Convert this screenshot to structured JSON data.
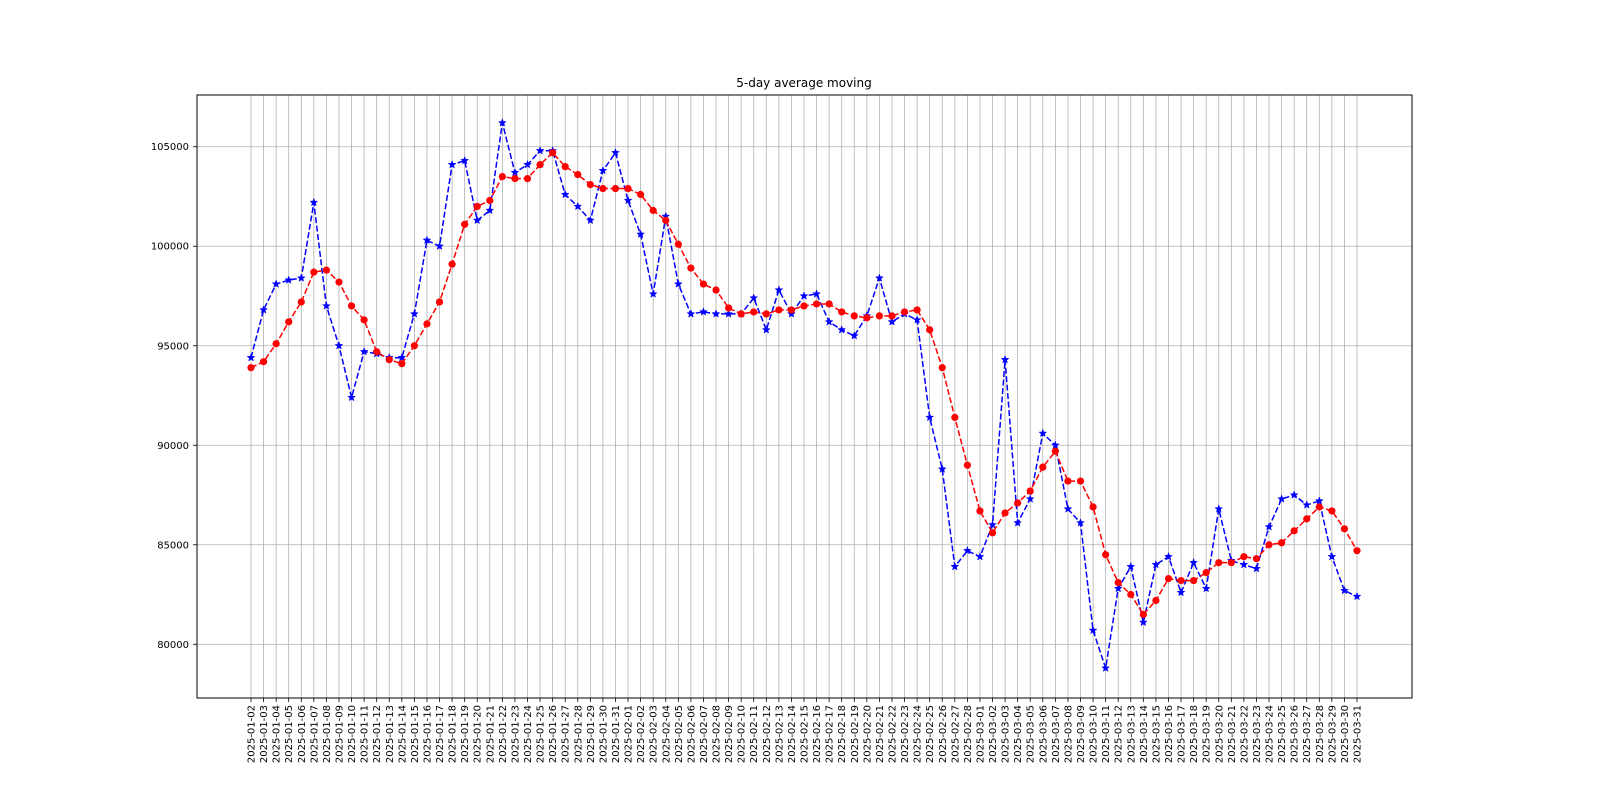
{
  "chart_data": {
    "type": "line",
    "title": "5-day average moving",
    "xlabel": "",
    "ylabel": "",
    "ylim": [
      77300,
      107600
    ],
    "yticks": [
      80000,
      85000,
      90000,
      95000,
      100000,
      105000
    ],
    "ytick_labels": [
      "80000",
      "85000",
      "90000",
      "95000",
      "100000",
      "105000"
    ],
    "grid": true,
    "legend": "none",
    "x": [
      "2025-01-02",
      "2025-01-03",
      "2025-01-04",
      "2025-01-05",
      "2025-01-06",
      "2025-01-07",
      "2025-01-08",
      "2025-01-09",
      "2025-01-10",
      "2025-01-11",
      "2025-01-12",
      "2025-01-13",
      "2025-01-14",
      "2025-01-15",
      "2025-01-16",
      "2025-01-17",
      "2025-01-18",
      "2025-01-19",
      "2025-01-20",
      "2025-01-21",
      "2025-01-22",
      "2025-01-23",
      "2025-01-24",
      "2025-01-25",
      "2025-01-26",
      "2025-01-27",
      "2025-01-28",
      "2025-01-29",
      "2025-01-30",
      "2025-01-31",
      "2025-02-01",
      "2025-02-02",
      "2025-02-03",
      "2025-02-04",
      "2025-02-05",
      "2025-02-06",
      "2025-02-07",
      "2025-02-08",
      "2025-02-09",
      "2025-02-10",
      "2025-02-11",
      "2025-02-12",
      "2025-02-13",
      "2025-02-14",
      "2025-02-15",
      "2025-02-16",
      "2025-02-17",
      "2025-02-18",
      "2025-02-19",
      "2025-02-20",
      "2025-02-21",
      "2025-02-22",
      "2025-02-23",
      "2025-02-24",
      "2025-02-25",
      "2025-02-26",
      "2025-02-27",
      "2025-02-28",
      "2025-03-01",
      "2025-03-02",
      "2025-03-03",
      "2025-03-04",
      "2025-03-05",
      "2025-03-06",
      "2025-03-07",
      "2025-03-08",
      "2025-03-09",
      "2025-03-10",
      "2025-03-11",
      "2025-03-12",
      "2025-03-13",
      "2025-03-14",
      "2025-03-15",
      "2025-03-16",
      "2025-03-17",
      "2025-03-18",
      "2025-03-19",
      "2025-03-20",
      "2025-03-21",
      "2025-03-22",
      "2025-03-23",
      "2025-03-24",
      "2025-03-25",
      "2025-03-26",
      "2025-03-27",
      "2025-03-28",
      "2025-03-29",
      "2025-03-30",
      "2025-03-31"
    ],
    "series": [
      {
        "color": "#0000ff",
        "marker": "star",
        "linestyle": "dashed",
        "values": [
          94400,
          96800,
          98100,
          98300,
          98400,
          102200,
          97000,
          95000,
          92400,
          94700,
          94600,
          94400,
          94400,
          96600,
          100300,
          100000,
          104100,
          104300,
          101300,
          101800,
          106200,
          103700,
          104100,
          104800,
          104800,
          102600,
          102000,
          101300,
          103800,
          104700,
          102300,
          100600,
          97600,
          101500,
          98100,
          96600,
          96700,
          96600,
          96600,
          96600,
          97400,
          95800,
          97800,
          96600,
          97500,
          97600,
          96200,
          95800,
          95500,
          96500,
          98400,
          96200,
          96600,
          96300,
          91400,
          88800,
          83900,
          84700,
          84400,
          86000,
          94300,
          86100,
          87300,
          90600,
          90000,
          86800,
          86100,
          80700,
          78800,
          82800,
          83900,
          81100,
          84000,
          84400,
          82600,
          84100,
          82800,
          86800,
          84200,
          84000,
          83800,
          85900,
          87300,
          87500,
          87000,
          87200,
          84400,
          82700,
          82400
        ]
      },
      {
        "color": "#ff0000",
        "marker": "circle",
        "linestyle": "dashed",
        "values": [
          93900,
          94200,
          95100,
          96200,
          97200,
          98700,
          98800,
          98200,
          97000,
          96300,
          94700,
          94300,
          94100,
          95000,
          96100,
          97200,
          99100,
          101100,
          102000,
          102300,
          103500,
          103400,
          103400,
          104100,
          104700,
          104000,
          103600,
          103100,
          102900,
          102900,
          102900,
          102600,
          101800,
          101300,
          100100,
          98900,
          98100,
          97800,
          96900,
          96600,
          96700,
          96600,
          96800,
          96800,
          97000,
          97100,
          97100,
          96700,
          96500,
          96400,
          96500,
          96500,
          96700,
          96800,
          95800,
          93900,
          91400,
          89000,
          86700,
          85600,
          86600,
          87100,
          87700,
          88900,
          89700,
          88200,
          88200,
          86900,
          84500,
          83100,
          82500,
          81500,
          82200,
          83300,
          83200,
          83200,
          83600,
          84100,
          84100,
          84400,
          84300,
          85000,
          85100,
          85700,
          86300,
          86900,
          86700,
          85800,
          84700
        ]
      }
    ]
  }
}
